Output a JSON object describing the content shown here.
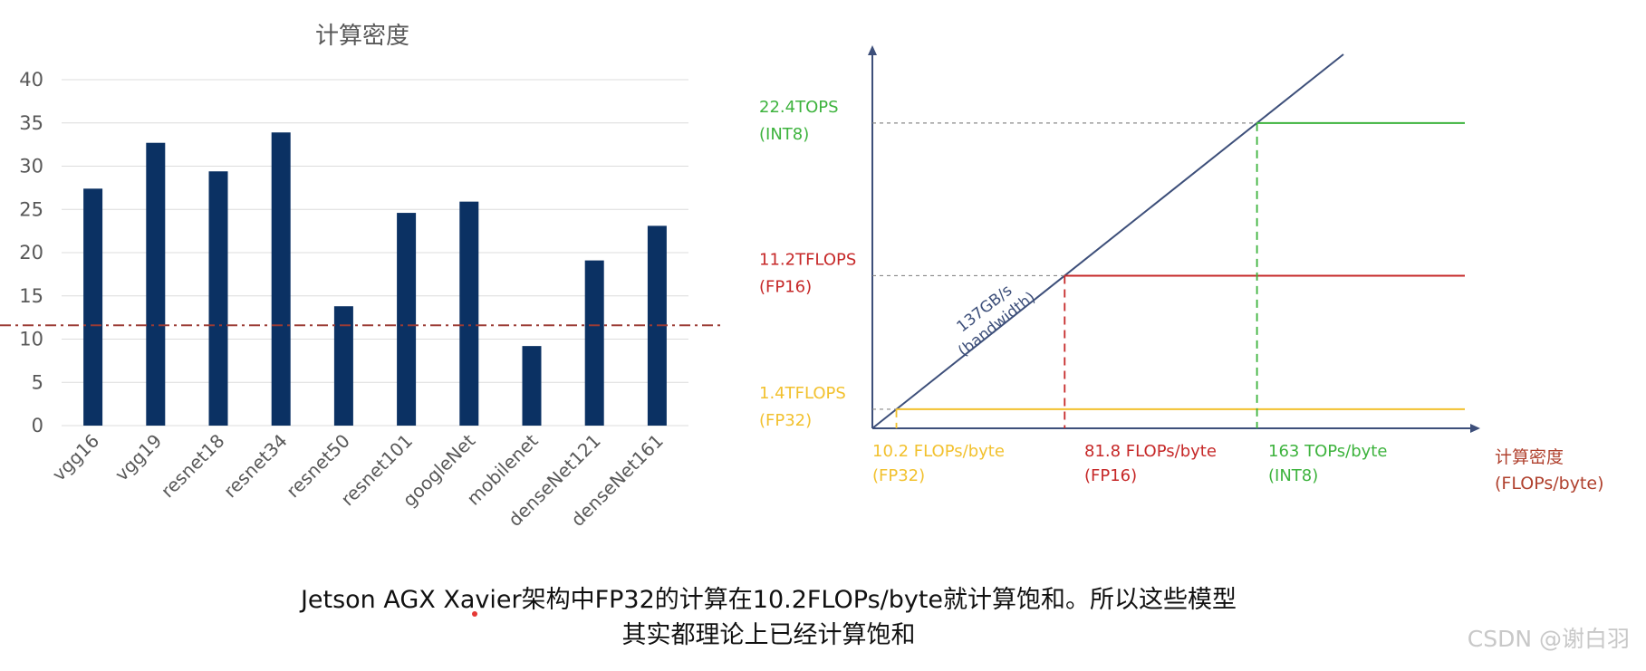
{
  "chart_data": [
    {
      "type": "bar",
      "title": "计算密度",
      "categories": [
        "vgg16",
        "vgg19",
        "resnet18",
        "resnet34",
        "resnet50",
        "resnet101",
        "googleNet",
        "mobilenet",
        "denseNet121",
        "denseNet161"
      ],
      "values": [
        27.4,
        32.7,
        29.4,
        33.9,
        13.8,
        24.6,
        25.9,
        9.2,
        19.1,
        23.1
      ],
      "ylim": [
        0,
        40
      ],
      "yticks": [
        "0",
        "5",
        "10",
        "15",
        "20",
        "25",
        "30",
        "35",
        "40"
      ],
      "reference_line": 11.6,
      "grid": true,
      "colors": {
        "bar": "#0b3163",
        "grid": "#dcdcdc",
        "reference": "#9b3b35",
        "text": "#595959"
      }
    },
    {
      "type": "line",
      "xlabel": "计算密度",
      "xlabel_unit": "(FLOPs/byte)",
      "slope_label": "137GB/s",
      "slope_label_2": "(bandwidth)",
      "roofs": [
        {
          "name": "FP32",
          "peak_line1": "1.4TFLOPS",
          "peak_line2": "(FP32)",
          "ridge_line1": "10.2 FLOPs/byte",
          "ridge_line2": "(FP32)",
          "peak": 1.4,
          "ridge": 10.2,
          "color": "#f2c12e"
        },
        {
          "name": "FP16",
          "peak_line1": "11.2TFLOPS",
          "peak_line2": "(FP16)",
          "ridge_line1": "81.8 FLOPs/byte",
          "ridge_line2": "(FP16)",
          "peak": 11.2,
          "ridge": 81.8,
          "color": "#c62828"
        },
        {
          "name": "INT8",
          "peak_line1": "22.4TOPS",
          "peak_line2": "(INT8)",
          "ridge_line1": "163 TOPs/byte",
          "ridge_line2": "(INT8)",
          "peak": 22.4,
          "ridge": 163,
          "color": "#3db33d"
        }
      ],
      "colors": {
        "axis": "#3d4f7a",
        "slope": "#3d4f7a",
        "xlabel": "#b0412e",
        "guide": "#888888"
      }
    }
  ],
  "caption": {
    "line1_a": "Jetson AGX Xa",
    "line1_b": "vier架构中FP32的计算在10.2FLOPs/byte就计算饱和。所以这些模型",
    "line2": "其实都理论上已经计算饱和",
    "marker_color": "#e53935"
  },
  "watermark": "CSDN @谢白羽"
}
